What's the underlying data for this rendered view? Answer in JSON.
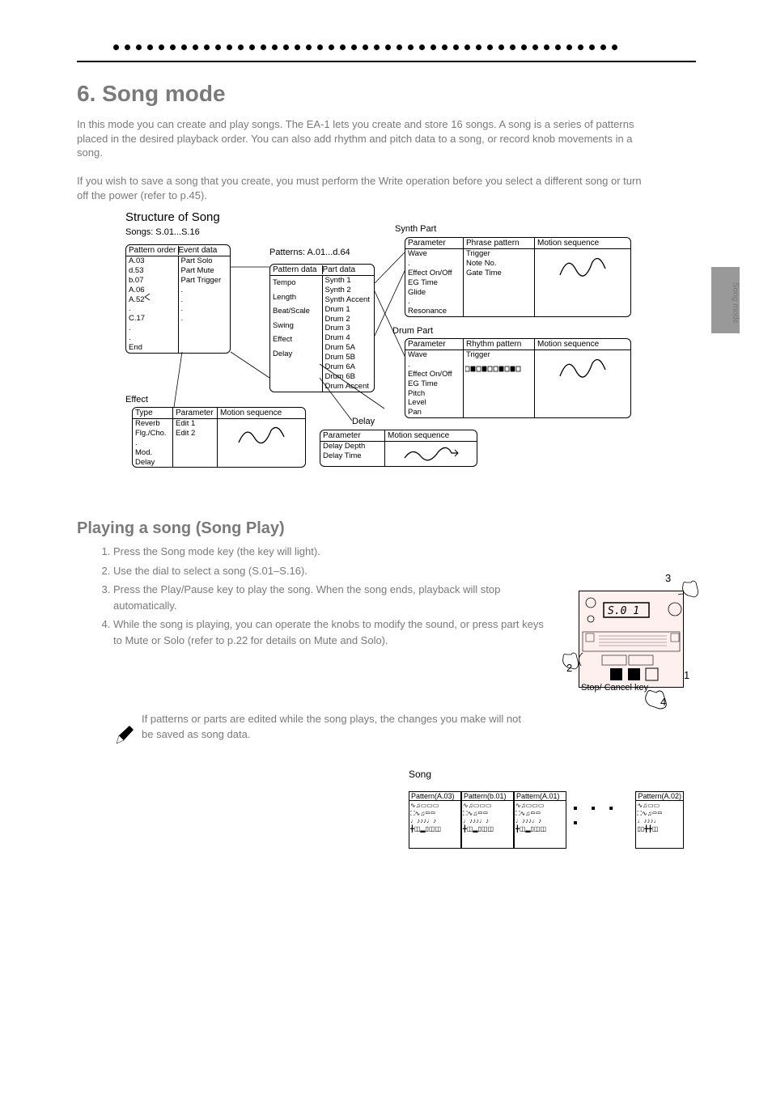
{
  "page": {
    "dot_count": 45,
    "side_tab": "Song mode"
  },
  "headings": {
    "chapter": "6. Song mode",
    "intro1": "In this mode you can create and play songs. The EA-1 lets you create and store 16 songs. A song is a series of patterns placed in the desired playback order. You can also add rhythm and pitch data to a song, or record knob movements in a song.",
    "intro2": "If you wish to save a song that you create, you must perform the Write operation before you select a different song or turn off the power (refer to p.45).",
    "playing": "Playing a song (Song Play)",
    "structure": "Structure of Song",
    "songs": "Songs: S.01...S.16"
  },
  "diagram": {
    "songbox": {
      "pattern_order_hdr": "Pattern order",
      "event_data_hdr": "Event data",
      "pattern_order": [
        "A.03",
        "d.53",
        "b.07",
        "A.06",
        "A.52",
        ".",
        "C.17",
        ".",
        ".",
        "End"
      ],
      "event_data": [
        "Part Solo",
        "Part Mute",
        "Part Trigger",
        ".",
        ".",
        ".",
        "."
      ]
    },
    "patterns_label": "Patterns: A.01...d.64",
    "pattern_data_hdr": "Pattern data",
    "part_data_hdr": "Part data",
    "pattern_data": [
      "Tempo",
      "Length",
      "Beat/Scale",
      "Swing",
      "Effect",
      "Delay"
    ],
    "part_data": [
      "Synth 1",
      "Synth 2",
      "Synth Accent",
      "Drum 1",
      "Drum 2",
      "Drum 3",
      "Drum 4",
      "Drum 5A",
      "Drum 5B",
      "Drum 6A",
      "Drum 6B",
      "Drum Accent"
    ],
    "synth": {
      "label": "Synth Part",
      "parameter_hdr": "Parameter",
      "phrase_hdr": "Phrase pattern",
      "motion_hdr": "Motion sequence",
      "parameters": [
        "Wave",
        ".",
        "Effect On/Off",
        "EG Time",
        "Glide",
        ".",
        "Resonance"
      ],
      "phrase": [
        "Trigger",
        "Note No.",
        "Gate Time"
      ]
    },
    "drum": {
      "label": "Drum Part",
      "parameter_hdr": "Parameter",
      "rhythm_hdr": "Rhythm pattern",
      "motion_hdr": "Motion sequence",
      "parameters": [
        "Wave",
        ".",
        "Effect On/Off",
        "EG Time",
        "Pitch",
        "Level",
        "Pan"
      ],
      "rhythm": [
        "Trigger"
      ]
    },
    "delay": {
      "label": "Delay",
      "parameter_hdr": "Parameter",
      "motion_hdr": "Motion sequence",
      "items": [
        "Delay Depth",
        "Delay Time"
      ]
    },
    "effect": {
      "label": "Effect",
      "type_hdr": "Type",
      "parameter_hdr": "Parameter",
      "motion_hdr": "Motion sequence",
      "types": [
        "Reverb",
        "Flg./Cho.",
        ".",
        "Mod. Delay"
      ],
      "params": [
        "Edit 1",
        "Edit 2"
      ]
    }
  },
  "playing": {
    "steps": [
      "Press the Song mode key (the key will light).",
      "Use the dial to select a song (S.01–S.16).",
      "Press the Play/Pause key to play the song. When the song ends, playback will stop automatically.",
      "While the song is playing, you can operate the knobs to modify the sound, or press part keys to Mute or Solo (refer to p.22 for details on Mute and Solo)."
    ],
    "note": "If patterns or parts are edited while the song plays, the changes you make will not be saved as song data."
  },
  "device": {
    "callouts": {
      "c1": "1",
      "c2": "2",
      "c3": "3",
      "c4": "4"
    },
    "stopcancel": "Stop/\nCancel key",
    "display": "S.0 1"
  },
  "song_diagram": {
    "title": "Song",
    "cols": [
      "Pattern(A.03)",
      "Pattern(b.01)",
      "Pattern(A.01)"
    ],
    "last": "Pattern(A.02)"
  }
}
